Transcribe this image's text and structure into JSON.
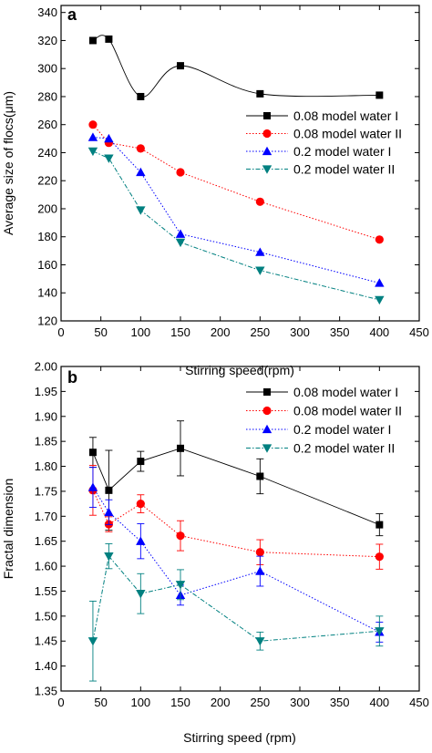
{
  "chart_data": [
    {
      "type": "line",
      "panel_label": "a",
      "xlabel": "Stirring speed(rpm)",
      "ylabel": "Average size of flocs(μm)",
      "xlim": [
        0,
        450
      ],
      "ylim": [
        120,
        345
      ],
      "xticks": [
        0,
        50,
        100,
        150,
        200,
        250,
        300,
        350,
        400,
        450
      ],
      "yticks": [
        120,
        140,
        160,
        180,
        200,
        220,
        240,
        260,
        280,
        300,
        320,
        340
      ],
      "grid": false,
      "legend_position": "center-right",
      "series": [
        {
          "name": "0.08 model water I",
          "marker": "square",
          "color": "#000000",
          "line": "solid-smooth",
          "x": [
            40,
            60,
            100,
            150,
            250,
            400
          ],
          "y": [
            320,
            321,
            280,
            302,
            282,
            281
          ]
        },
        {
          "name": "0.08 model water II",
          "marker": "circle",
          "color": "#ff0000",
          "line": "dotted",
          "x": [
            40,
            60,
            100,
            150,
            250,
            400
          ],
          "y": [
            260,
            247,
            243,
            226,
            205,
            178
          ]
        },
        {
          "name": "0.2 model water I",
          "marker": "triangle-up",
          "color": "#0000ff",
          "line": "dotted",
          "x": [
            40,
            60,
            100,
            150,
            250,
            400
          ],
          "y": [
            251,
            250,
            226,
            182,
            169,
            147
          ]
        },
        {
          "name": "0.2 model water II",
          "marker": "triangle-down",
          "color": "#008080",
          "line": "dashdot",
          "x": [
            40,
            60,
            100,
            150,
            250,
            400
          ],
          "y": [
            241,
            236,
            199,
            176,
            156,
            135
          ]
        }
      ]
    },
    {
      "type": "line",
      "panel_label": "b",
      "xlabel": "Stirring speed (rpm)",
      "ylabel": "Fractal dimension",
      "xlim": [
        0,
        450
      ],
      "ylim": [
        1.35,
        2.0
      ],
      "xticks": [
        0,
        50,
        100,
        150,
        200,
        250,
        300,
        350,
        400,
        450
      ],
      "yticks": [
        "1.35",
        "1.40",
        "1.45",
        "1.50",
        "1.55",
        "1.60",
        "1.65",
        "1.70",
        "1.75",
        "1.80",
        "1.85",
        "1.90",
        "1.95",
        "2.00"
      ],
      "grid": false,
      "legend_position": "top-right",
      "series": [
        {
          "name": "0.08 model water I",
          "marker": "square",
          "color": "#000000",
          "line": "solid",
          "x": [
            40,
            60,
            100,
            150,
            250,
            400
          ],
          "y": [
            1.828,
            1.752,
            1.81,
            1.836,
            1.78,
            1.683
          ],
          "err": [
            0.03,
            0.08,
            0.02,
            0.055,
            0.035,
            0.022
          ]
        },
        {
          "name": "0.08 model water II",
          "marker": "circle",
          "color": "#ff0000",
          "line": "dotted",
          "x": [
            40,
            60,
            100,
            150,
            250,
            400
          ],
          "y": [
            1.752,
            1.684,
            1.725,
            1.661,
            1.628,
            1.619
          ],
          "err": [
            0.05,
            0.015,
            0.018,
            0.03,
            0.025,
            0.025
          ]
        },
        {
          "name": "0.2 model water I",
          "marker": "triangle-up",
          "color": "#0000ff",
          "line": "dotted",
          "x": [
            40,
            60,
            100,
            150,
            250,
            400
          ],
          "y": [
            1.758,
            1.708,
            1.65,
            1.542,
            1.59,
            1.468
          ],
          "err": [
            0.04,
            0.025,
            0.035,
            0.02,
            0.03,
            0.02
          ]
        },
        {
          "name": "0.2 model water II",
          "marker": "triangle-down",
          "color": "#008080",
          "line": "dashdot",
          "x": [
            40,
            60,
            100,
            150,
            250,
            400
          ],
          "y": [
            1.45,
            1.62,
            1.545,
            1.563,
            1.45,
            1.47
          ],
          "err": [
            0.08,
            0.025,
            0.04,
            0.03,
            0.018,
            0.03
          ]
        }
      ]
    }
  ]
}
